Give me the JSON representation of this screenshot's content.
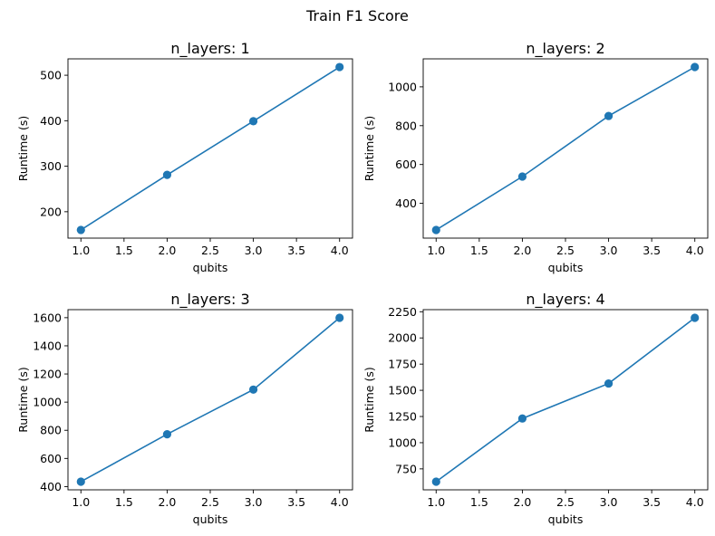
{
  "figure": {
    "title": "Train F1 Score",
    "line_color": "#1f77b4"
  },
  "chart_data": [
    {
      "type": "line",
      "title": "n_layers: 1",
      "xlabel": "qubits",
      "ylabel": "Runtime (s)",
      "x": [
        1.0,
        2.0,
        3.0,
        4.0
      ],
      "y": [
        160,
        281,
        399,
        518
      ],
      "xlim": [
        0.85,
        4.15
      ],
      "ylim": [
        142,
        536
      ],
      "xticks": [
        "1.0",
        "1.5",
        "2.0",
        "2.5",
        "3.0",
        "3.5",
        "4.0"
      ],
      "yticks": [
        200,
        300,
        400,
        500
      ],
      "grid": false
    },
    {
      "type": "line",
      "title": "n_layers: 2",
      "xlabel": "qubits",
      "ylabel": "Runtime (s)",
      "x": [
        1.0,
        2.0,
        3.0,
        4.0
      ],
      "y": [
        263,
        538,
        850,
        1102
      ],
      "xlim": [
        0.85,
        4.15
      ],
      "ylim": [
        221,
        1144
      ],
      "xticks": [
        "1.0",
        "1.5",
        "2.0",
        "2.5",
        "3.0",
        "3.5",
        "4.0"
      ],
      "yticks": [
        400,
        600,
        800,
        1000
      ],
      "grid": false
    },
    {
      "type": "line",
      "title": "n_layers: 3",
      "xlabel": "qubits",
      "ylabel": "Runtime (s)",
      "x": [
        1.0,
        2.0,
        3.0,
        4.0
      ],
      "y": [
        435,
        772,
        1089,
        1599
      ],
      "xlim": [
        0.85,
        4.15
      ],
      "ylim": [
        377,
        1657
      ],
      "xticks": [
        "1.0",
        "1.5",
        "2.0",
        "2.5",
        "3.0",
        "3.5",
        "4.0"
      ],
      "yticks": [
        400,
        600,
        800,
        1000,
        1200,
        1400,
        1600
      ],
      "grid": false
    },
    {
      "type": "line",
      "title": "n_layers: 4",
      "xlabel": "qubits",
      "ylabel": "Runtime (s)",
      "x": [
        1.0,
        2.0,
        3.0,
        4.0
      ],
      "y": [
        628,
        1231,
        1565,
        2192
      ],
      "xlim": [
        0.85,
        4.15
      ],
      "ylim": [
        550,
        2270
      ],
      "xticks": [
        "1.0",
        "1.5",
        "2.0",
        "2.5",
        "3.0",
        "3.5",
        "4.0"
      ],
      "yticks": [
        750,
        1000,
        1250,
        1500,
        1750,
        2000,
        2250
      ],
      "grid": false
    }
  ]
}
